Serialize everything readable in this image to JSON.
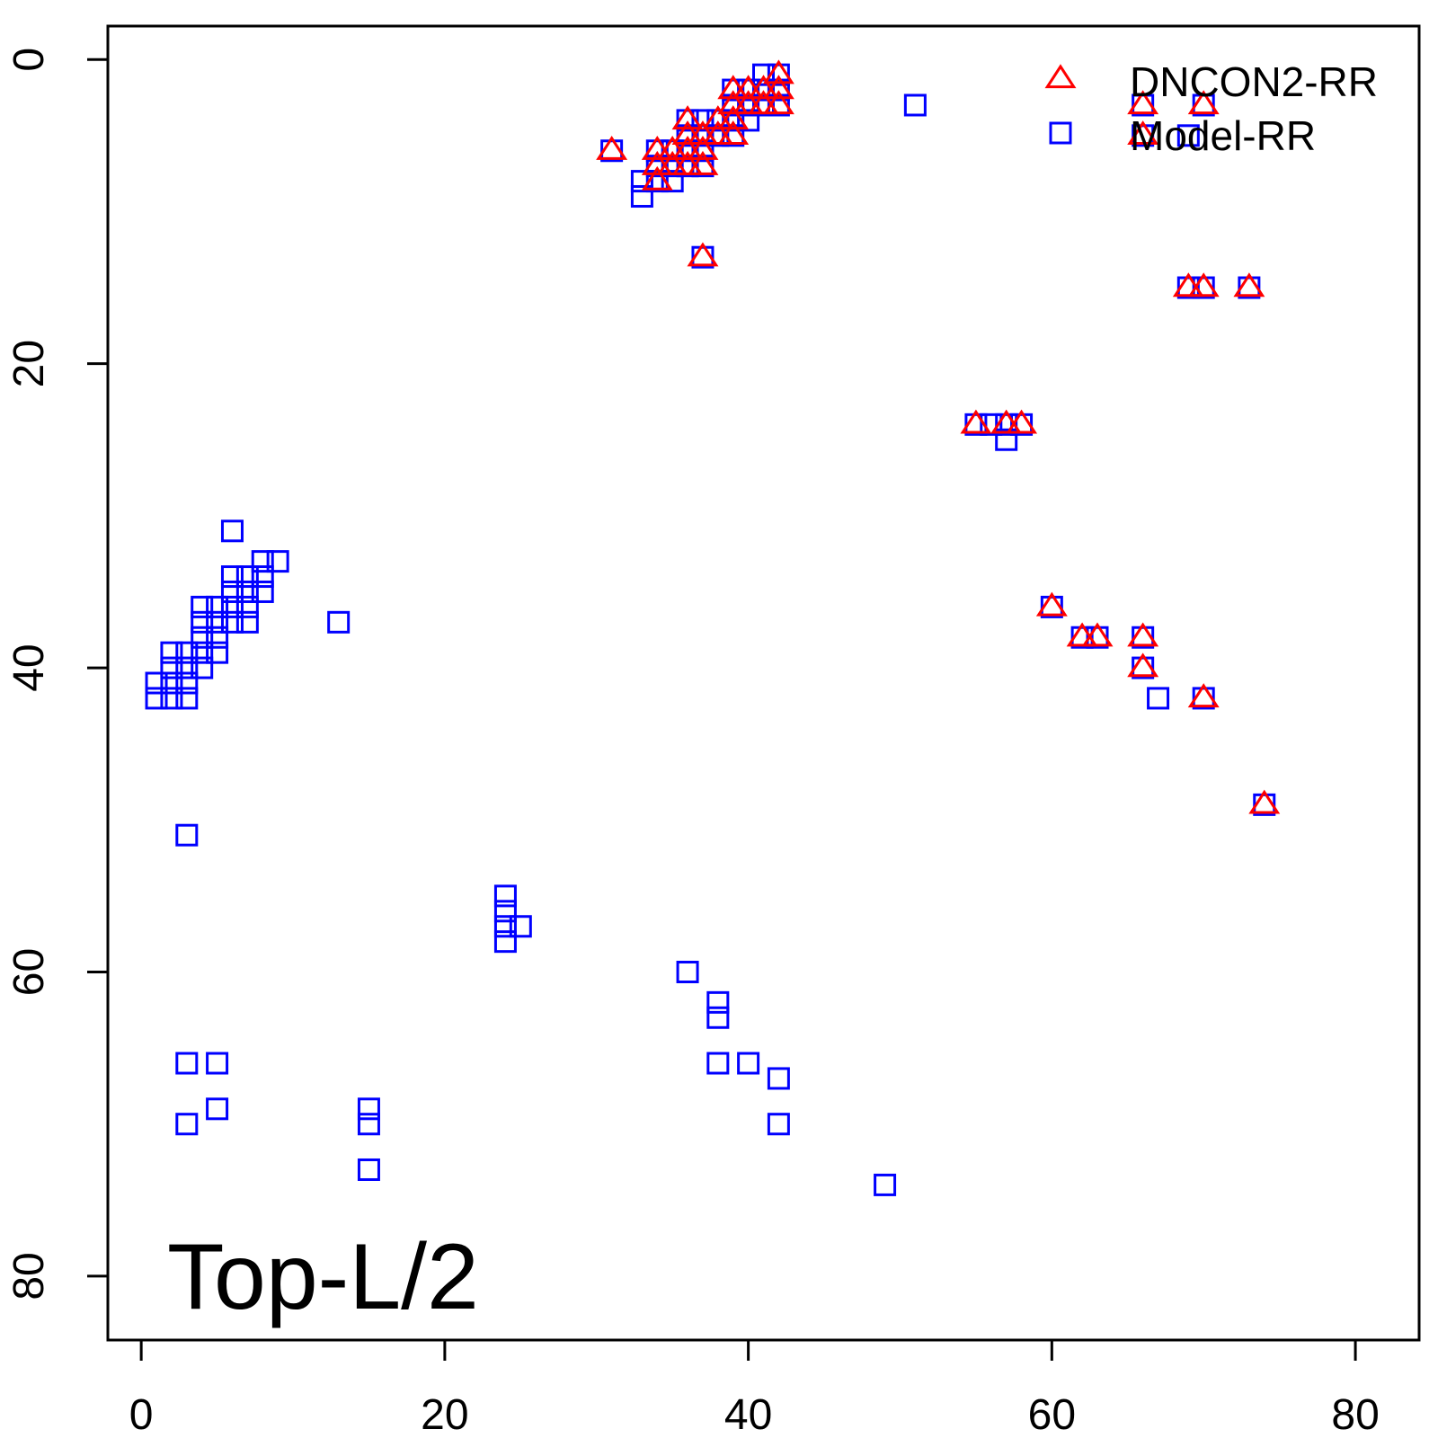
{
  "chart_data": {
    "type": "scatter",
    "annotation": "Top-L/2",
    "xlim": [
      -2.2,
      84.2
    ],
    "ylim": [
      -2.2,
      84.2
    ],
    "y_reversed": true,
    "x_ticks": [
      0,
      20,
      40,
      60,
      80
    ],
    "y_ticks": [
      0,
      20,
      40,
      60,
      80
    ],
    "grid": false,
    "legend_position": "top-right",
    "series": [
      {
        "name": "DNCON2-RR",
        "marker": "triangle",
        "color": "#ff0000",
        "points": [
          [
            31,
            6
          ],
          [
            34,
            6
          ],
          [
            34,
            7
          ],
          [
            34,
            8
          ],
          [
            35,
            6
          ],
          [
            35,
            7
          ],
          [
            36,
            4
          ],
          [
            36,
            5
          ],
          [
            36,
            6
          ],
          [
            36,
            7
          ],
          [
            37,
            5
          ],
          [
            37,
            6
          ],
          [
            37,
            7
          ],
          [
            38,
            4
          ],
          [
            38,
            5
          ],
          [
            39,
            2
          ],
          [
            39,
            3
          ],
          [
            39,
            4
          ],
          [
            39,
            5
          ],
          [
            40,
            2
          ],
          [
            40,
            3
          ],
          [
            41,
            2
          ],
          [
            41,
            3
          ],
          [
            42,
            1
          ],
          [
            42,
            2
          ],
          [
            42,
            3
          ],
          [
            37,
            13
          ],
          [
            66,
            3
          ],
          [
            70,
            3
          ],
          [
            66,
            5
          ],
          [
            69,
            15
          ],
          [
            70,
            15
          ],
          [
            73,
            15
          ],
          [
            55,
            24
          ],
          [
            57,
            24
          ],
          [
            58,
            24
          ],
          [
            60,
            36
          ],
          [
            62,
            38
          ],
          [
            63,
            38
          ],
          [
            66,
            38
          ],
          [
            66,
            40
          ],
          [
            70,
            42
          ],
          [
            74,
            49
          ]
        ]
      },
      {
        "name": "Model-RR",
        "marker": "square",
        "color": "#0000ff",
        "points": [
          [
            31,
            6
          ],
          [
            33,
            8
          ],
          [
            33,
            9
          ],
          [
            34,
            6
          ],
          [
            34,
            7
          ],
          [
            34,
            8
          ],
          [
            35,
            6
          ],
          [
            35,
            7
          ],
          [
            35,
            8
          ],
          [
            36,
            4
          ],
          [
            36,
            5
          ],
          [
            36,
            6
          ],
          [
            36,
            7
          ],
          [
            37,
            4
          ],
          [
            37,
            5
          ],
          [
            37,
            6
          ],
          [
            37,
            7
          ],
          [
            38,
            4
          ],
          [
            38,
            5
          ],
          [
            39,
            2
          ],
          [
            39,
            3
          ],
          [
            39,
            4
          ],
          [
            39,
            5
          ],
          [
            40,
            2
          ],
          [
            40,
            3
          ],
          [
            40,
            4
          ],
          [
            41,
            1
          ],
          [
            41,
            2
          ],
          [
            41,
            3
          ],
          [
            42,
            1
          ],
          [
            42,
            2
          ],
          [
            42,
            3
          ],
          [
            37,
            13
          ],
          [
            51,
            3
          ],
          [
            66,
            3
          ],
          [
            70,
            3
          ],
          [
            66,
            5
          ],
          [
            69,
            5
          ],
          [
            69,
            15
          ],
          [
            70,
            15
          ],
          [
            73,
            15
          ],
          [
            55,
            24
          ],
          [
            56,
            24
          ],
          [
            57,
            24
          ],
          [
            57,
            25
          ],
          [
            58,
            24
          ],
          [
            60,
            36
          ],
          [
            62,
            38
          ],
          [
            63,
            38
          ],
          [
            66,
            38
          ],
          [
            66,
            40
          ],
          [
            67,
            42
          ],
          [
            70,
            42
          ],
          [
            74,
            49
          ],
          [
            6,
            31
          ],
          [
            6,
            34
          ],
          [
            6,
            35
          ],
          [
            6,
            36
          ],
          [
            6,
            37
          ],
          [
            7,
            34
          ],
          [
            7,
            35
          ],
          [
            7,
            36
          ],
          [
            7,
            37
          ],
          [
            8,
            33
          ],
          [
            8,
            34
          ],
          [
            8,
            35
          ],
          [
            9,
            33
          ],
          [
            4,
            36
          ],
          [
            4,
            37
          ],
          [
            4,
            38
          ],
          [
            4,
            39
          ],
          [
            4,
            40
          ],
          [
            5,
            36
          ],
          [
            5,
            37
          ],
          [
            5,
            38
          ],
          [
            5,
            39
          ],
          [
            3,
            39
          ],
          [
            3,
            40
          ],
          [
            3,
            41
          ],
          [
            3,
            42
          ],
          [
            2,
            39
          ],
          [
            2,
            40
          ],
          [
            2,
            41
          ],
          [
            2,
            42
          ],
          [
            1,
            41
          ],
          [
            1,
            42
          ],
          [
            13,
            37
          ],
          [
            3,
            51
          ],
          [
            24,
            55
          ],
          [
            24,
            56
          ],
          [
            24,
            57
          ],
          [
            24,
            58
          ],
          [
            25,
            57
          ],
          [
            36,
            60
          ],
          [
            38,
            62
          ],
          [
            38,
            63
          ],
          [
            38,
            66
          ],
          [
            40,
            66
          ],
          [
            42,
            67
          ],
          [
            42,
            70
          ],
          [
            3,
            66
          ],
          [
            5,
            66
          ],
          [
            3,
            70
          ],
          [
            5,
            69
          ],
          [
            15,
            69
          ],
          [
            15,
            70
          ],
          [
            15,
            73
          ],
          [
            49,
            74
          ]
        ]
      }
    ]
  }
}
